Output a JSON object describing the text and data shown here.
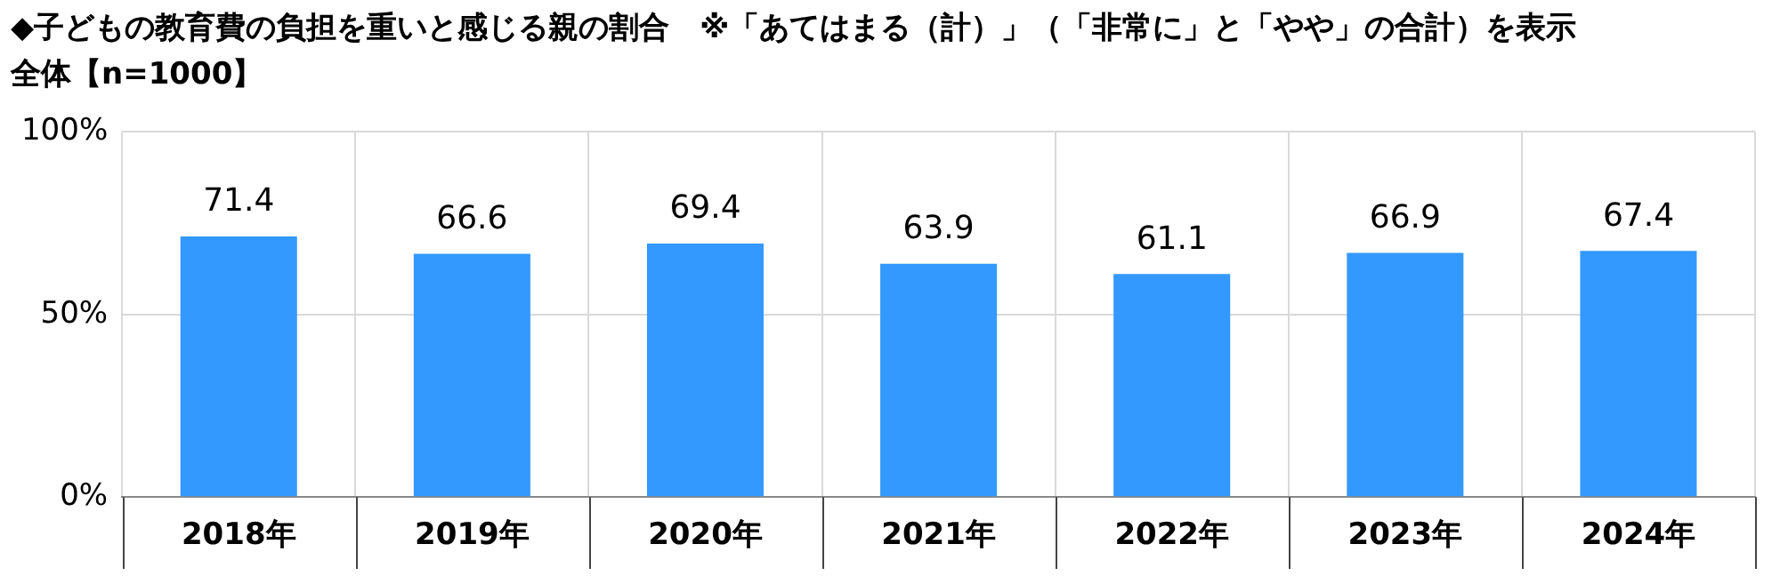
{
  "chart_data": {
    "type": "bar",
    "title": "◆子どもの教育費の負担を重いと感じる親の割合　※「あてはまる（計）」（「非常に」と「やや」の合計）を表示",
    "subtitle": "全体【n=1000】",
    "categories": [
      "2018年",
      "2019年",
      "2020年",
      "2021年",
      "2022年",
      "2023年",
      "2024年"
    ],
    "values": [
      71.4,
      66.6,
      69.4,
      63.9,
      61.1,
      66.9,
      67.4
    ],
    "color": "#3399ff",
    "ylim": [
      0,
      100
    ],
    "yticks": [
      {
        "value": 0,
        "label": "0%"
      },
      {
        "value": 50,
        "label": "50%"
      },
      {
        "value": 100,
        "label": "100%"
      }
    ],
    "grid": true,
    "data_labels": true
  }
}
